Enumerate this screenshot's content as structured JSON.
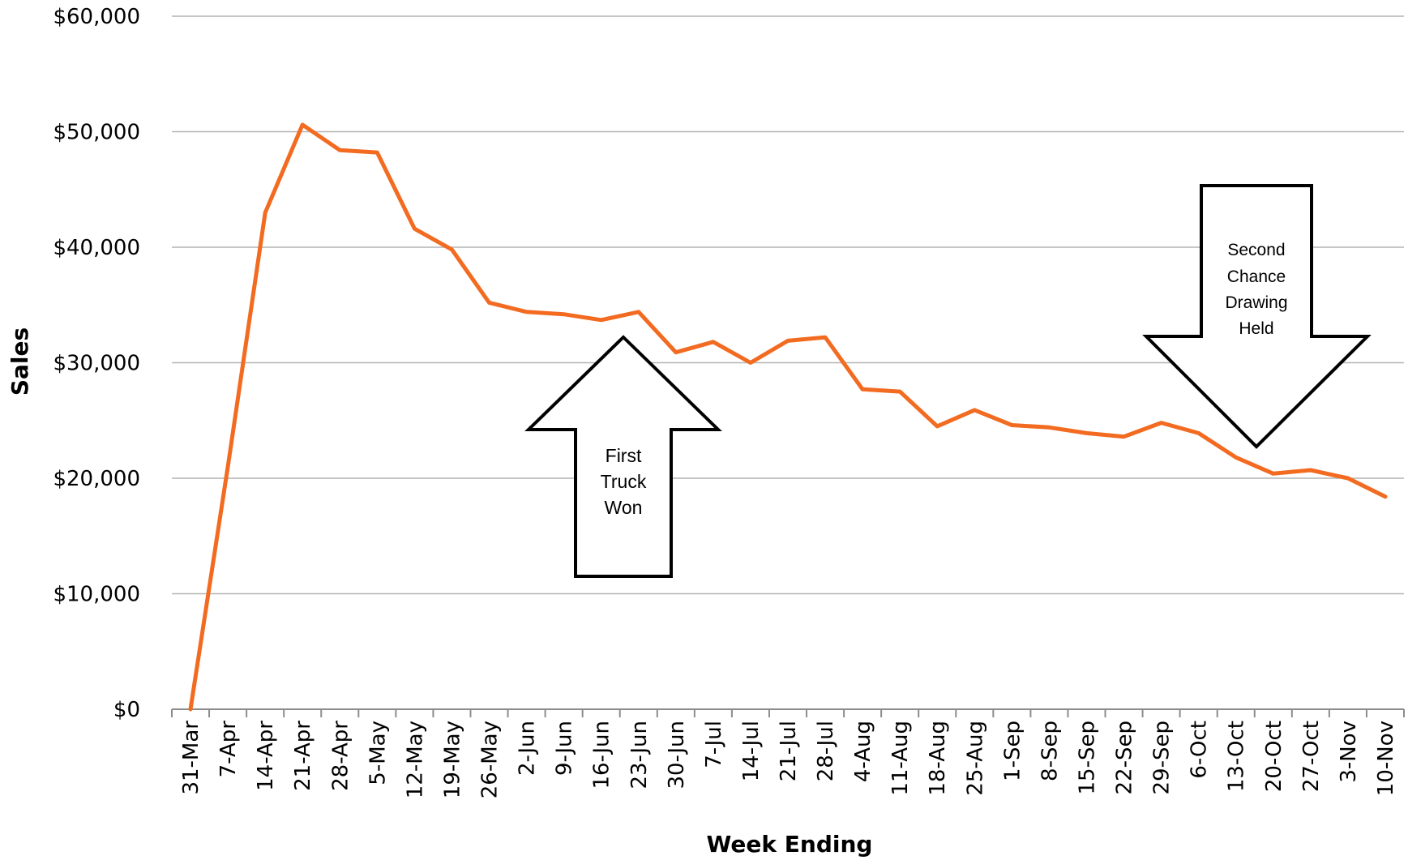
{
  "chart_data": {
    "type": "line",
    "title": "",
    "xlabel": "Week Ending",
    "ylabel": "Sales",
    "ylim": [
      0,
      60000
    ],
    "yticks": [
      "$0",
      "$10,000",
      "$20,000",
      "$30,000",
      "$40,000",
      "$50,000",
      "$60,000"
    ],
    "grid": true,
    "line_color": "#F26B21",
    "categories": [
      "31-Mar",
      "7-Apr",
      "14-Apr",
      "21-Apr",
      "28-Apr",
      "5-May",
      "12-May",
      "19-May",
      "26-May",
      "2-Jun",
      "9-Jun",
      "16-Jun",
      "23-Jun",
      "30-Jun",
      "7-Jul",
      "14-Jul",
      "21-Jul",
      "28-Jul",
      "4-Aug",
      "11-Aug",
      "18-Aug",
      "25-Aug",
      "1-Sep",
      "8-Sep",
      "15-Sep",
      "22-Sep",
      "29-Sep",
      "6-Oct",
      "13-Oct",
      "20-Oct",
      "27-Oct",
      "3-Nov",
      "10-Nov"
    ],
    "series": [
      {
        "values": [
          0,
          21000,
          43000,
          50600,
          48400,
          48200,
          41600,
          39800,
          35200,
          34400,
          34200,
          33700,
          34400,
          30900,
          31800,
          30000,
          31900,
          32200,
          27700,
          27500,
          24500,
          25900,
          24600,
          24400,
          23900,
          23600,
          24800,
          23900,
          21800,
          20400,
          20700,
          20000,
          18400
        ]
      }
    ],
    "annotations": [
      {
        "text_lines": [
          "First",
          "Truck",
          "Won"
        ],
        "direction": "up",
        "near": "23-Jun"
      },
      {
        "text_lines": [
          "Second",
          "Chance",
          "Drawing",
          "Held"
        ],
        "direction": "down",
        "near": "13-Oct"
      }
    ]
  }
}
